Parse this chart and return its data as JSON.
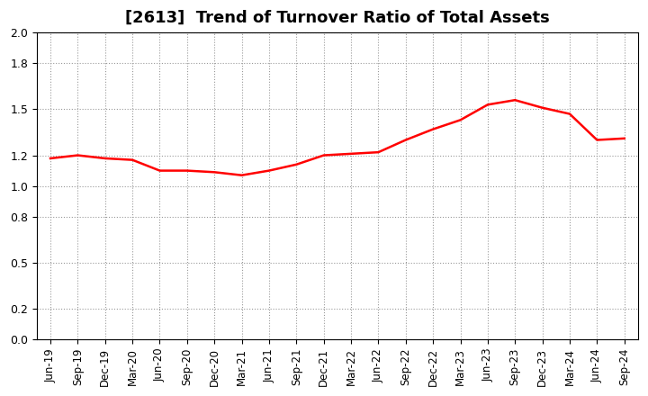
{
  "title": "[2613]  Trend of Turnover Ratio of Total Assets",
  "x_labels": [
    "Jun-19",
    "Sep-19",
    "Dec-19",
    "Mar-20",
    "Jun-20",
    "Sep-20",
    "Dec-20",
    "Mar-21",
    "Jun-21",
    "Sep-21",
    "Dec-21",
    "Mar-22",
    "Jun-22",
    "Sep-22",
    "Dec-22",
    "Mar-23",
    "Jun-23",
    "Sep-23",
    "Dec-23",
    "Mar-24",
    "Jun-24",
    "Sep-24"
  ],
  "values": [
    1.18,
    1.2,
    1.18,
    1.17,
    1.1,
    1.1,
    1.09,
    1.07,
    1.1,
    1.14,
    1.2,
    1.21,
    1.22,
    1.3,
    1.37,
    1.43,
    1.53,
    1.56,
    1.51,
    1.47,
    1.3,
    1.31
  ],
  "line_color": "#FF0000",
  "background_color": "#FFFFFF",
  "grid_color": "#999999",
  "ylim": [
    0.0,
    2.0
  ],
  "yticks": [
    0.0,
    0.2,
    0.5,
    0.8,
    1.0,
    1.2,
    1.5,
    1.8,
    2.0
  ],
  "title_fontsize": 13,
  "tick_fontsize": 8.5
}
